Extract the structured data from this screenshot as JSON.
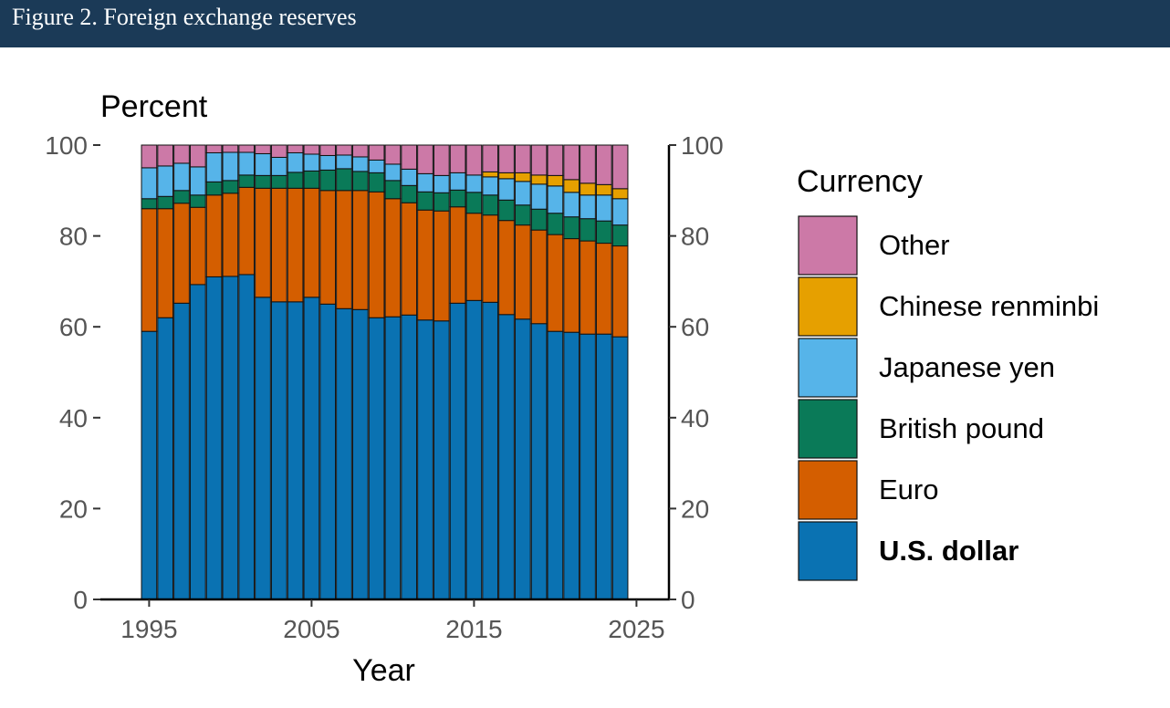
{
  "header": {
    "title": "Figure 2. Foreign exchange reserves"
  },
  "colors": {
    "header_bg": "#1b3a57",
    "U.S. dollar": "#0a72b2",
    "Euro": "#d45e00",
    "British pound": "#0a7a58",
    "Japanese yen": "#56b4e9",
    "Chinese renminbi": "#e6a000",
    "Other": "#cc79a7"
  },
  "chart_data": {
    "type": "bar",
    "stacked": true,
    "ylabel": "Percent",
    "xlabel": "Year",
    "ylim": [
      0,
      100
    ],
    "y_ticks": [
      "0",
      "20",
      "40",
      "60",
      "80",
      "100"
    ],
    "x_ticks": [
      "1995",
      "2005",
      "2015",
      "2025"
    ],
    "x_tick_values": [
      1995,
      2005,
      2015,
      2025
    ],
    "secondary_y_axis": true,
    "legend_title": "Currency",
    "legend_position": "right",
    "legend_bold": "U.S. dollar",
    "years": [
      1995,
      1996,
      1997,
      1998,
      1999,
      2000,
      2001,
      2002,
      2003,
      2004,
      2005,
      2006,
      2007,
      2008,
      2009,
      2010,
      2011,
      2012,
      2013,
      2014,
      2015,
      2016,
      2017,
      2018,
      2019,
      2020,
      2021,
      2022,
      2023,
      2024
    ],
    "series": [
      {
        "name": "U.S. dollar",
        "values": [
          59.0,
          62.0,
          65.2,
          69.3,
          71.0,
          71.1,
          71.5,
          66.5,
          65.5,
          65.5,
          66.5,
          65.0,
          64.0,
          63.8,
          62.0,
          62.2,
          62.6,
          61.5,
          61.3,
          65.2,
          65.8,
          65.4,
          62.7,
          61.7,
          60.7,
          59.0,
          58.8,
          58.4,
          58.4,
          57.8
        ]
      },
      {
        "name": "Euro",
        "values": [
          27.0,
          24.0,
          22.0,
          17.0,
          18.0,
          18.3,
          19.2,
          24.0,
          25.0,
          25.0,
          24.0,
          25.0,
          26.0,
          26.2,
          27.7,
          26.0,
          24.7,
          24.2,
          24.2,
          21.2,
          19.2,
          19.2,
          20.7,
          20.7,
          20.6,
          21.3,
          20.6,
          20.5,
          20.0,
          20.0
        ]
      },
      {
        "name": "British pound",
        "values": [
          2.2,
          2.7,
          2.8,
          2.7,
          2.9,
          2.8,
          2.7,
          2.8,
          2.8,
          3.5,
          3.8,
          4.5,
          4.8,
          4.2,
          4.2,
          4.0,
          3.8,
          4.0,
          4.0,
          3.7,
          4.6,
          4.4,
          4.5,
          4.4,
          4.6,
          4.7,
          4.8,
          4.9,
          4.9,
          4.6
        ]
      },
      {
        "name": "Japanese yen",
        "values": [
          6.8,
          6.7,
          6.0,
          6.2,
          6.4,
          6.2,
          5.0,
          4.8,
          4.0,
          4.3,
          3.7,
          3.2,
          3.0,
          3.2,
          2.8,
          3.6,
          3.6,
          4.0,
          3.8,
          3.8,
          3.8,
          4.0,
          4.7,
          5.2,
          5.5,
          6.0,
          5.4,
          5.2,
          5.7,
          5.8
        ]
      },
      {
        "name": "Chinese renminbi",
        "values": [
          0,
          0,
          0,
          0,
          0,
          0,
          0,
          0,
          0,
          0,
          0,
          0,
          0,
          0,
          0,
          0,
          0,
          0,
          0,
          0,
          0,
          1.1,
          1.3,
          1.9,
          2.0,
          2.3,
          2.8,
          2.6,
          2.3,
          2.2
        ]
      },
      {
        "name": "Other",
        "values": [
          5.0,
          4.6,
          4.0,
          4.8,
          1.7,
          1.6,
          1.6,
          1.9,
          2.7,
          1.7,
          2.0,
          2.3,
          2.2,
          2.6,
          3.3,
          4.2,
          5.3,
          6.3,
          6.7,
          6.1,
          6.6,
          5.9,
          6.1,
          6.1,
          6.6,
          6.7,
          7.6,
          8.4,
          8.7,
          9.6
        ]
      }
    ],
    "legend_order": [
      "Other",
      "Chinese renminbi",
      "Japanese yen",
      "British pound",
      "Euro",
      "U.S. dollar"
    ]
  }
}
